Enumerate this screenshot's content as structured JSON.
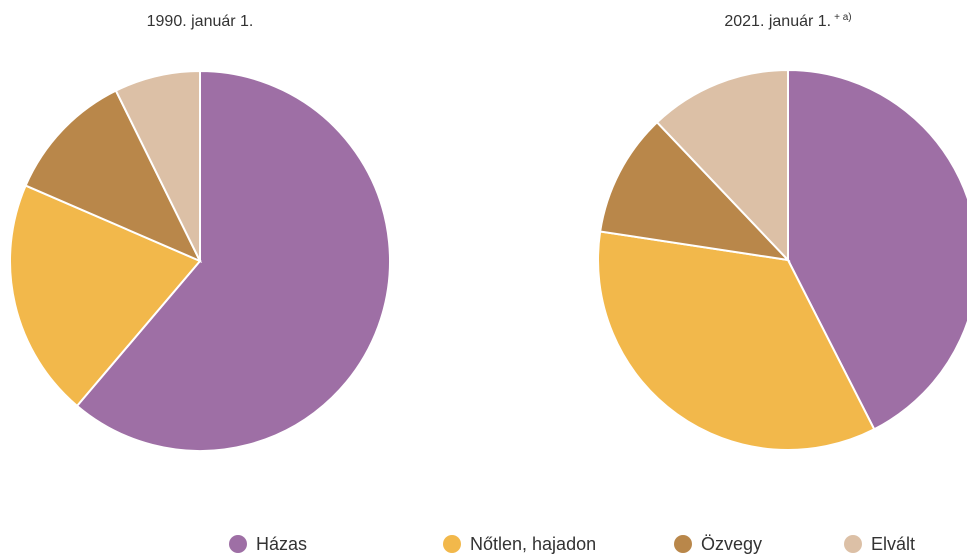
{
  "chart_data": [
    {
      "type": "pie",
      "title": "1990. január 1.",
      "categories": [
        "Házas",
        "Nőtlen, hajadon",
        "Özvegy",
        "Elvált"
      ],
      "values": [
        61.2,
        20.3,
        11.2,
        7.3
      ],
      "colors": [
        "#9e6fa5",
        "#f2b84b",
        "#b9874a",
        "#dcc0a6"
      ]
    },
    {
      "type": "pie",
      "title": "2021. január 1.",
      "title_note": "+ a)",
      "categories": [
        "Házas",
        "Nőtlen, hajadon",
        "Özvegy",
        "Elvált"
      ],
      "values": [
        42.5,
        34.9,
        10.5,
        12.1
      ],
      "colors": [
        "#9e6fa5",
        "#f2b84b",
        "#b9874a",
        "#dcc0a6"
      ]
    }
  ]
}
